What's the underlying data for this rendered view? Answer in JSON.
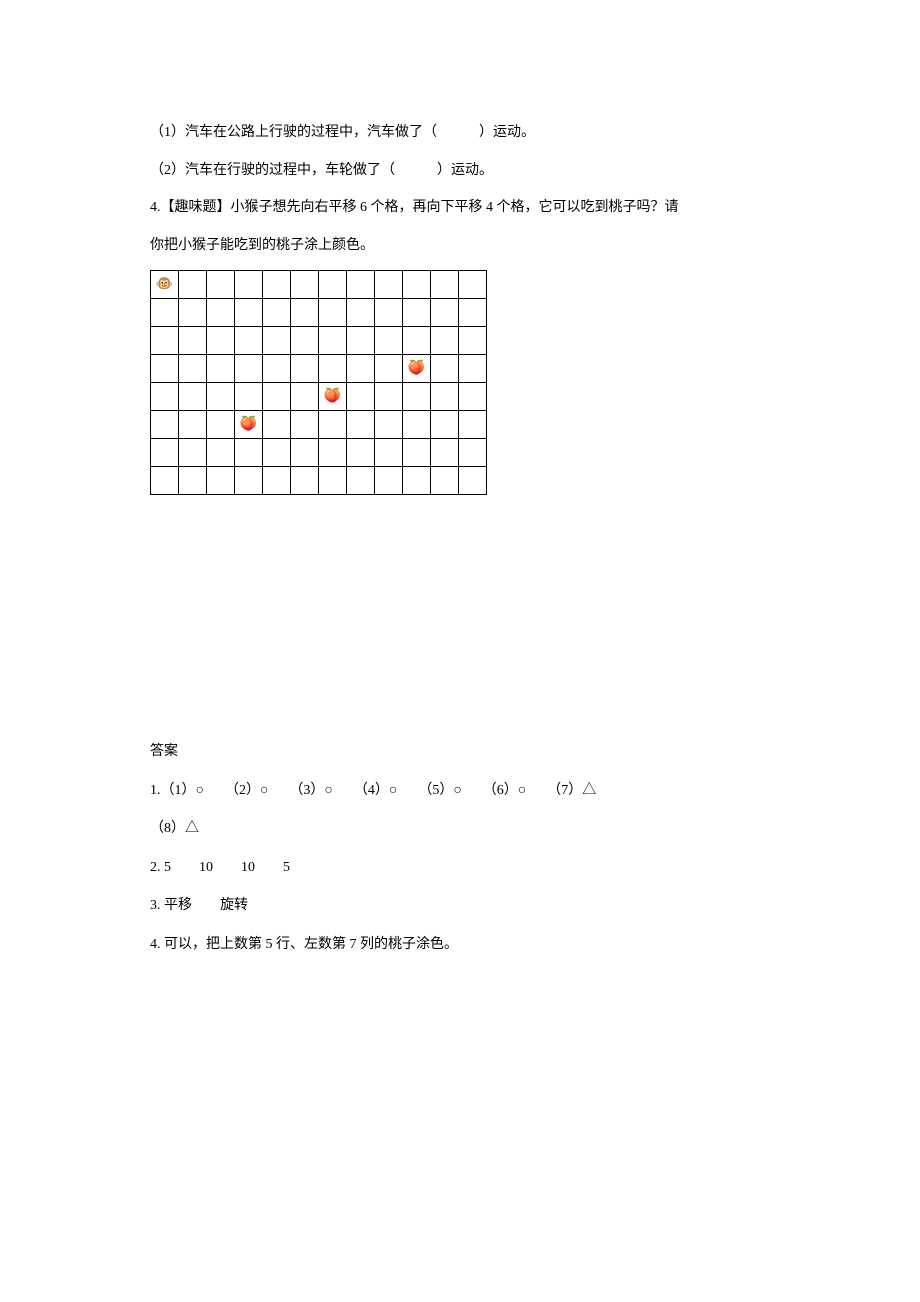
{
  "question1": {
    "text": "（1）汽车在公路上行驶的过程中，汽车做了（　　　）运动。"
  },
  "question2": {
    "text": "（2）汽车在行驶的过程中，车轮做了（　　　）运动。"
  },
  "question4_line1": {
    "text": "4.【趣味题】小猴子想先向右平移 6 个格，再向下平移 4 个格，它可以吃到桃子吗？请"
  },
  "question4_line2": {
    "text": "你把小猴子能吃到的桃子涂上颜色。"
  },
  "grid": {
    "rows": 8,
    "cols": 12,
    "cell_size": 28,
    "border_color": "#000000",
    "monkey": {
      "row": 0,
      "col": 0,
      "symbol": "🐵"
    },
    "peaches": [
      {
        "row": 3,
        "col": 9,
        "symbol": "🍑"
      },
      {
        "row": 4,
        "col": 6,
        "symbol": "🍑"
      },
      {
        "row": 5,
        "col": 3,
        "symbol": "🍑"
      }
    ]
  },
  "answers": {
    "title": "答案",
    "line1": "1.（1）○　　（2）○　　（3）○　　（4）○　　（5）○　　（6）○　　（7）△",
    "line2": "（8）△",
    "line3": "2. 5　　10　　10　　5",
    "line4": "3. 平移　　旋转",
    "line5": "4. 可以，把上数第 5 行、左数第 7 列的桃子涂色。"
  },
  "colors": {
    "background": "#ffffff",
    "text": "#000000",
    "grid_border": "#000000"
  },
  "typography": {
    "body_fontsize": 14,
    "line_height": 2.4
  }
}
